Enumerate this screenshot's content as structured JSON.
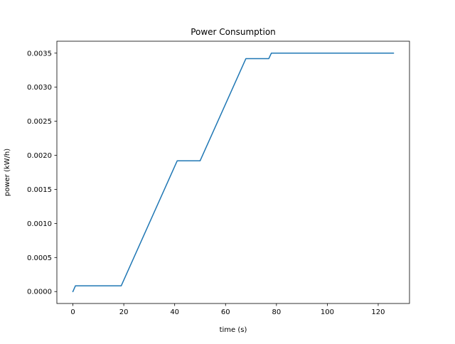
{
  "chart_data": {
    "type": "line",
    "title": "Power Consumption",
    "xlabel": "time (s)",
    "ylabel": "power (kW/h)",
    "xlim": [
      -6.3,
      132.3
    ],
    "ylim": [
      -0.000175,
      0.003675
    ],
    "x_ticks": [
      0,
      20,
      40,
      60,
      80,
      100,
      120
    ],
    "x_tick_labels": [
      "0",
      "20",
      "40",
      "60",
      "80",
      "100",
      "120"
    ],
    "y_ticks": [
      0.0,
      0.0005,
      0.001,
      0.0015,
      0.002,
      0.0025,
      0.003,
      0.0035
    ],
    "y_tick_labels": [
      "0.0000",
      "0.0005",
      "0.0010",
      "0.0015",
      "0.0020",
      "0.0025",
      "0.0030",
      "0.0035"
    ],
    "grid": false,
    "legend": "none",
    "series": [
      {
        "color": "#1f77b4",
        "x": [
          0,
          1,
          19,
          41,
          50,
          68,
          77,
          78,
          126
        ],
        "y": [
          0.0,
          8.5e-05,
          8.5e-05,
          0.00192,
          0.00192,
          0.00342,
          0.00342,
          0.0035,
          0.0035
        ]
      }
    ]
  }
}
